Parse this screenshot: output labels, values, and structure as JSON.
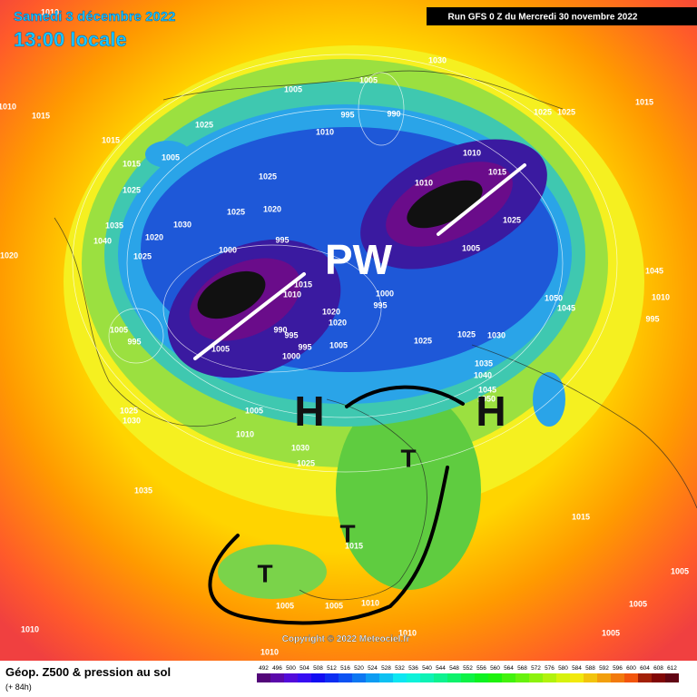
{
  "header": {
    "date": "Samedi 3 décembre 2022",
    "time": "13:00 locale",
    "run": "Run GFS 0 Z du Mercredi 30 novembre 2022"
  },
  "footer": {
    "title": "Géop. Z500 & pression au sol",
    "lead": "(+ 84h)",
    "copyright": "Copyright © 2022 Meteociel.fr"
  },
  "annotations": [
    "PW",
    "H",
    "H",
    "T",
    "T",
    "T"
  ],
  "pressure_labels": [
    "1010",
    "1010",
    "1015",
    "1015",
    "1005",
    "1015",
    "1025",
    "1025",
    "1005",
    "1005",
    "995",
    "990",
    "1030",
    "1010",
    "1010",
    "1010",
    "1015",
    "1025",
    "1025",
    "1015",
    "1025",
    "1005",
    "1025",
    "1025",
    "1020",
    "995",
    "1030",
    "1035",
    "1040",
    "1020",
    "1025",
    "1000",
    "1020",
    "1045",
    "1050",
    "1045",
    "1010",
    "995",
    "1015",
    "1010",
    "1000",
    "995",
    "1020",
    "1020",
    "990",
    "995",
    "1000",
    "995",
    "1005",
    "1025",
    "1025",
    "1030",
    "1035",
    "1040",
    "1045",
    "1050",
    "1005",
    "995",
    "1005",
    "1025",
    "1030",
    "1010",
    "1005",
    "1030",
    "1025",
    "1035",
    "1015",
    "1015",
    "1005",
    "1005",
    "1010",
    "1010",
    "1010",
    "1010",
    "1005",
    "1005",
    "1005"
  ],
  "colorbar": {
    "ticks": [
      492,
      496,
      500,
      504,
      508,
      512,
      516,
      520,
      524,
      528,
      532,
      536,
      540,
      544,
      548,
      552,
      556,
      560,
      564,
      568,
      572,
      576,
      580,
      584,
      588,
      592,
      596,
      600,
      604,
      608,
      612
    ]
  }
}
